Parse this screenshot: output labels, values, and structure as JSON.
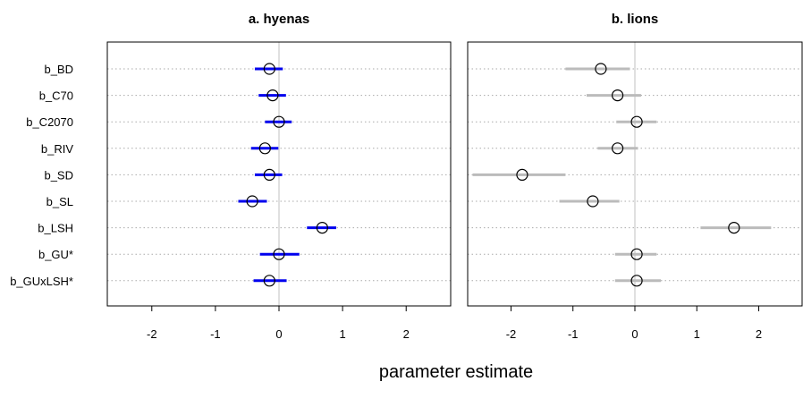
{
  "chart_data": {
    "type": "scatter",
    "subtype": "dot-and-whisker",
    "xlabel": "parameter estimate",
    "parameters": [
      "b_BD",
      "b_C70",
      "b_C2070",
      "b_RIV",
      "b_SD",
      "b_SL",
      "b_LSH",
      "b_GU*",
      "b_GUxLSH*"
    ],
    "panels": [
      {
        "title": "a. hyenas",
        "xlim": [
          -2.7,
          2.7
        ],
        "xticks": [
          -2,
          -1,
          0,
          1,
          2
        ],
        "reference_line": 0,
        "color": "#0000ee",
        "series": [
          {
            "parameter": "b_BD",
            "estimate": -0.15,
            "lower": -0.38,
            "upper": 0.06
          },
          {
            "parameter": "b_C70",
            "estimate": -0.1,
            "lower": -0.32,
            "upper": 0.11
          },
          {
            "parameter": "b_C2070",
            "estimate": 0.0,
            "lower": -0.22,
            "upper": 0.2
          },
          {
            "parameter": "b_RIV",
            "estimate": -0.22,
            "lower": -0.44,
            "upper": -0.01
          },
          {
            "parameter": "b_SD",
            "estimate": -0.15,
            "lower": -0.38,
            "upper": 0.05
          },
          {
            "parameter": "b_SL",
            "estimate": -0.42,
            "lower": -0.64,
            "upper": -0.19
          },
          {
            "parameter": "b_LSH",
            "estimate": 0.68,
            "lower": 0.44,
            "upper": 0.9
          },
          {
            "parameter": "b_GU*",
            "estimate": 0.0,
            "lower": -0.3,
            "upper": 0.32
          },
          {
            "parameter": "b_GUxLSH*",
            "estimate": -0.15,
            "lower": -0.4,
            "upper": 0.12
          }
        ]
      },
      {
        "title": "b. lions",
        "xlim": [
          -2.7,
          2.7
        ],
        "xticks": [
          -2,
          -1,
          0,
          1,
          2
        ],
        "reference_line": 0,
        "color": "#bbbbbb",
        "series": [
          {
            "parameter": "b_BD",
            "estimate": -0.55,
            "lower": -1.12,
            "upper": -0.08
          },
          {
            "parameter": "b_C70",
            "estimate": -0.28,
            "lower": -0.78,
            "upper": 0.1
          },
          {
            "parameter": "b_C2070",
            "estimate": 0.03,
            "lower": -0.3,
            "upper": 0.35
          },
          {
            "parameter": "b_RIV",
            "estimate": -0.28,
            "lower": -0.6,
            "upper": 0.05
          },
          {
            "parameter": "b_SD",
            "estimate": -1.82,
            "lower": -2.62,
            "upper": -1.12
          },
          {
            "parameter": "b_SL",
            "estimate": -0.68,
            "lower": -1.22,
            "upper": -0.25
          },
          {
            "parameter": "b_LSH",
            "estimate": 1.6,
            "lower": 1.06,
            "upper": 2.2
          },
          {
            "parameter": "b_GU*",
            "estimate": 0.03,
            "lower": -0.32,
            "upper": 0.35
          },
          {
            "parameter": "b_GUxLSH*",
            "estimate": 0.03,
            "lower": -0.32,
            "upper": 0.42
          }
        ]
      }
    ]
  }
}
